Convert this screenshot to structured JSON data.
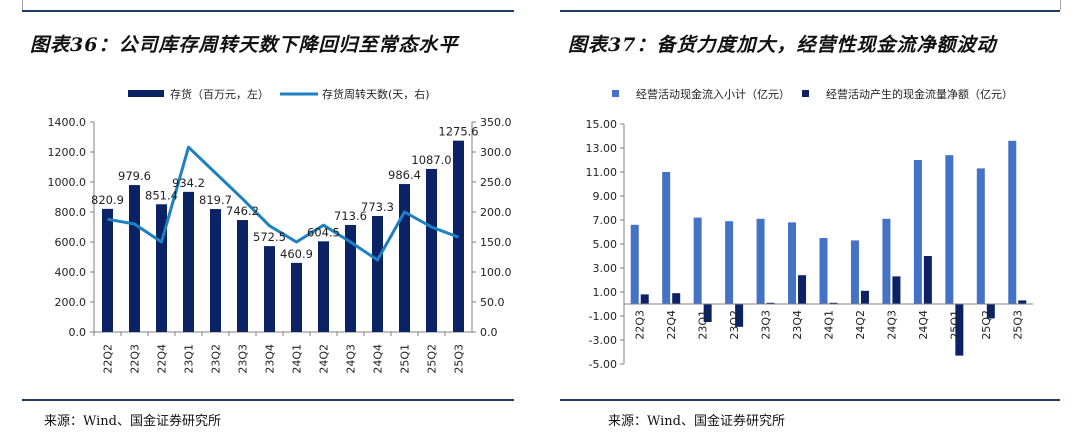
{
  "left": {
    "title": "图表36：公司库存周转天数下降回归至常态水平",
    "source": "来源：Wind、国金证券研究所"
  },
  "right": {
    "title": "图表37：备货力度加大，经营性现金流净额波动",
    "source": "来源：Wind、国金证券研究所"
  },
  "colors": {
    "navy": "#0b2265",
    "line_blue": "#1f7fc3",
    "bar_blue": "#4472c4",
    "rule": "#1f3864"
  },
  "chart_data": [
    {
      "type": "bar+line",
      "title": "图表36：公司库存周转天数下降回归至常态水平",
      "categories": [
        "22Q2",
        "22Q3",
        "22Q4",
        "23Q1",
        "23Q2",
        "23Q3",
        "23Q4",
        "24Q1",
        "24Q2",
        "24Q3",
        "24Q4",
        "25Q1",
        "25Q2",
        "25Q3"
      ],
      "series": [
        {
          "name": "存货（百万元，左）",
          "kind": "bar",
          "axis": "left",
          "values": [
            820.9,
            979.6,
            851.4,
            934.2,
            819.7,
            746.2,
            572.5,
            460.9,
            604.5,
            713.6,
            773.3,
            986.4,
            1087.0,
            1275.6
          ]
        },
        {
          "name": "存货周转天数(天，右)",
          "kind": "line",
          "axis": "right",
          "values": [
            188,
            180,
            150,
            308,
            265,
            222,
            177,
            150,
            178,
            150,
            120,
            200,
            175,
            158
          ]
        }
      ],
      "value_labels": [
        "820.9",
        "979.6",
        "851.4",
        "934.2",
        "819.7",
        "746.2",
        "572.5",
        "460.9",
        "604.5",
        "713.6",
        "773.3",
        "986.4",
        "1087.0",
        "1275.6"
      ],
      "ylim_left": [
        0,
        1400
      ],
      "ylim_right": [
        0,
        350
      ],
      "yticks_left": [
        "0.0",
        "200.0",
        "400.0",
        "600.0",
        "800.0",
        "1000.0",
        "1200.0",
        "1400.0"
      ],
      "yticks_right": [
        "0.0",
        "50.0",
        "100.0",
        "150.0",
        "200.0",
        "250.0",
        "300.0",
        "350.0"
      ],
      "legend": [
        "存货（百万元，左）",
        "存货周转天数(天，右)"
      ]
    },
    {
      "type": "bar",
      "title": "图表37：备货力度加大，经营性现金流净额波动",
      "categories": [
        "22Q3",
        "22Q4",
        "23Q1",
        "23Q2",
        "23Q3",
        "23Q4",
        "24Q1",
        "24Q2",
        "24Q3",
        "24Q4",
        "25Q1",
        "25Q2",
        "25Q3"
      ],
      "series": [
        {
          "name": "经营活动现金流入小计（亿元）",
          "values": [
            6.6,
            11.0,
            7.2,
            6.9,
            7.1,
            6.8,
            5.5,
            5.3,
            7.1,
            12.0,
            12.4,
            11.3,
            13.6
          ]
        },
        {
          "name": "经营活动产生的现金流量净额（亿元）",
          "values": [
            0.8,
            0.9,
            -1.5,
            -1.9,
            0.1,
            2.4,
            0.1,
            1.1,
            2.3,
            4.0,
            -4.3,
            -1.2,
            0.3
          ]
        }
      ],
      "ylim": [
        -5,
        15
      ],
      "yticks": [
        "15.00",
        "13.00",
        "11.00",
        "9.00",
        "7.00",
        "5.00",
        "3.00",
        "1.00",
        "-1.00",
        "-3.00",
        "-5.00"
      ],
      "legend": [
        "经营活动现金流入小计（亿元）",
        "经营活动产生的现金流量净额（亿元）"
      ]
    }
  ]
}
